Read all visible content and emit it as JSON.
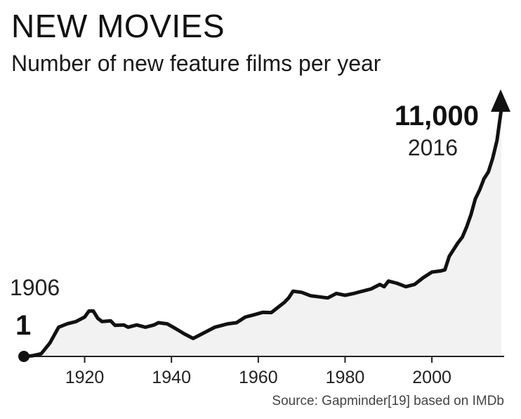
{
  "chart_data": {
    "type": "area",
    "title": "NEW MOVIES",
    "subtitle": "Number of new feature films per year",
    "source": "Source: Gapminder[19] based on IMDb",
    "xlabel": "",
    "ylabel": "",
    "xlim": [
      1906,
      2016
    ],
    "ylim": [
      0,
      11000
    ],
    "x_ticks": [
      "1920",
      "1940",
      "1960",
      "1980",
      "2000"
    ],
    "grid": false,
    "legend": "none",
    "annotations": {
      "start_value": "1",
      "start_year": "1906",
      "end_value": "11,000",
      "end_year": "2016"
    },
    "colors": {
      "line": "#111111",
      "fill": "#f2f2f2",
      "axis": "#222222"
    },
    "series": [
      {
        "x": [
          1906,
          1908,
          1910,
          1912,
          1914,
          1916,
          1918,
          1920,
          1921,
          1922,
          1923,
          1924,
          1926,
          1927,
          1929,
          1930,
          1932,
          1934,
          1936,
          1937,
          1939,
          1941,
          1943,
          1945,
          1947,
          1950,
          1953,
          1955,
          1957,
          1959,
          1961,
          1963,
          1965,
          1966,
          1967,
          1968,
          1970,
          1972,
          1974,
          1976,
          1978,
          1980,
          1982,
          1984,
          1986,
          1988,
          1989,
          1990,
          1992,
          1994,
          1996,
          1998,
          2000,
          2002,
          2003,
          2004,
          2005,
          2006,
          2007,
          2008,
          2009,
          2010,
          2011,
          2012,
          2013,
          2014,
          2015,
          2016
        ],
        "y": [
          1,
          30,
          120,
          600,
          1300,
          1450,
          1550,
          1750,
          2020,
          2020,
          1700,
          1550,
          1580,
          1380,
          1400,
          1300,
          1400,
          1300,
          1400,
          1500,
          1450,
          1230,
          1000,
          800,
          1000,
          1300,
          1450,
          1500,
          1750,
          1850,
          1960,
          1950,
          2250,
          2400,
          2600,
          2900,
          2850,
          2700,
          2650,
          2600,
          2800,
          2720,
          2800,
          2900,
          3000,
          3200,
          3100,
          3350,
          3250,
          3100,
          3200,
          3500,
          3750,
          3800,
          3850,
          4450,
          4750,
          5050,
          5300,
          5750,
          6300,
          7000,
          7400,
          7900,
          8200,
          8800,
          9600,
          11000
        ]
      }
    ]
  }
}
